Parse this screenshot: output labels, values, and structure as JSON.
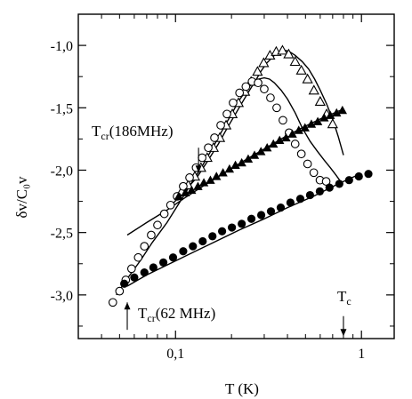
{
  "chart_data": {
    "type": "scatter",
    "xlabel": "T (K)",
    "ylabel": "δv/C₀v",
    "x_scale": "log",
    "xlim": [
      0.03,
      1.5
    ],
    "ylim": [
      -3.35,
      -0.75
    ],
    "x_ticks": [
      {
        "value": 0.1,
        "label": "0,1"
      },
      {
        "value": 1,
        "label": "1"
      }
    ],
    "y_ticks": [
      {
        "value": -1.0,
        "label": "-1,0"
      },
      {
        "value": -1.5,
        "label": "-1,5"
      },
      {
        "value": -2.0,
        "label": "-2,0"
      },
      {
        "value": -2.5,
        "label": "-2,5"
      },
      {
        "value": -3.0,
        "label": "-3,0"
      }
    ],
    "series": [
      {
        "marker": "open-triangle",
        "x": [
          0.108,
          0.117,
          0.127,
          0.137,
          0.148,
          0.16,
          0.173,
          0.187,
          0.202,
          0.218,
          0.236,
          0.255,
          0.276,
          0.298,
          0.322,
          0.348,
          0.376,
          0.406,
          0.44,
          0.475,
          0.513,
          0.555,
          0.6,
          0.65,
          0.7
        ],
        "y": [
          -2.17,
          -2.12,
          -2.05,
          -1.98,
          -1.9,
          -1.82,
          -1.74,
          -1.64,
          -1.55,
          -1.46,
          -1.37,
          -1.29,
          -1.21,
          -1.14,
          -1.08,
          -1.05,
          -1.04,
          -1.07,
          -1.13,
          -1.2,
          -1.27,
          -1.36,
          -1.45,
          -1.55,
          -1.63
        ]
      },
      {
        "marker": "open-circle",
        "x": [
          0.046,
          0.05,
          0.054,
          0.058,
          0.063,
          0.068,
          0.074,
          0.08,
          0.087,
          0.094,
          0.102,
          0.11,
          0.119,
          0.129,
          0.139,
          0.15,
          0.162,
          0.175,
          0.189,
          0.204,
          0.221,
          0.239,
          0.258,
          0.278,
          0.3,
          0.324,
          0.35,
          0.378,
          0.408,
          0.44,
          0.475,
          0.513,
          0.554,
          0.598,
          0.646
        ],
        "y": [
          -3.06,
          -2.97,
          -2.88,
          -2.79,
          -2.7,
          -2.61,
          -2.52,
          -2.44,
          -2.35,
          -2.28,
          -2.21,
          -2.13,
          -2.06,
          -1.98,
          -1.9,
          -1.82,
          -1.74,
          -1.64,
          -1.55,
          -1.46,
          -1.38,
          -1.33,
          -1.29,
          -1.3,
          -1.35,
          -1.42,
          -1.5,
          -1.6,
          -1.7,
          -1.79,
          -1.87,
          -1.95,
          -2.02,
          -2.08,
          -2.09
        ]
      },
      {
        "marker": "filled-triangle",
        "x": [
          0.104,
          0.113,
          0.122,
          0.132,
          0.142,
          0.154,
          0.166,
          0.18,
          0.195,
          0.21,
          0.227,
          0.246,
          0.266,
          0.288,
          0.311,
          0.336,
          0.363,
          0.393,
          0.425,
          0.46,
          0.497,
          0.538,
          0.582,
          0.63,
          0.68,
          0.735,
          0.79
        ],
        "y": [
          -2.21,
          -2.18,
          -2.16,
          -2.13,
          -2.1,
          -2.08,
          -2.05,
          -2.02,
          -1.99,
          -1.96,
          -1.94,
          -1.91,
          -1.88,
          -1.85,
          -1.82,
          -1.79,
          -1.76,
          -1.74,
          -1.71,
          -1.68,
          -1.66,
          -1.63,
          -1.61,
          -1.58,
          -1.56,
          -1.54,
          -1.52
        ]
      },
      {
        "marker": "filled-circle",
        "x": [
          0.053,
          0.06,
          0.068,
          0.076,
          0.086,
          0.097,
          0.11,
          0.124,
          0.14,
          0.158,
          0.178,
          0.201,
          0.227,
          0.256,
          0.289,
          0.326,
          0.368,
          0.415,
          0.469,
          0.529,
          0.597,
          0.673,
          0.76,
          0.858,
          0.968,
          1.09
        ],
        "y": [
          -2.91,
          -2.86,
          -2.82,
          -2.78,
          -2.74,
          -2.7,
          -2.65,
          -2.61,
          -2.57,
          -2.53,
          -2.49,
          -2.46,
          -2.43,
          -2.39,
          -2.36,
          -2.33,
          -2.3,
          -2.26,
          -2.23,
          -2.2,
          -2.17,
          -2.14,
          -2.11,
          -2.08,
          -2.05,
          -2.03
        ]
      }
    ],
    "fit_lines": [
      {
        "x": [
          0.095,
          0.11,
          0.13,
          0.15,
          0.17,
          0.19,
          0.21,
          0.23,
          0.25,
          0.27,
          0.29,
          0.31,
          0.33,
          0.35,
          0.37,
          0.39,
          0.41,
          0.44,
          0.48,
          0.52,
          0.56,
          0.6,
          0.65,
          0.7,
          0.75,
          0.8
        ],
        "y": [
          -2.28,
          -2.18,
          -2.06,
          -1.92,
          -1.79,
          -1.66,
          -1.55,
          -1.45,
          -1.36,
          -1.28,
          -1.2,
          -1.14,
          -1.1,
          -1.06,
          -1.04,
          -1.04,
          -1.05,
          -1.08,
          -1.13,
          -1.19,
          -1.27,
          -1.36,
          -1.47,
          -1.59,
          -1.73,
          -1.88
        ]
      },
      {
        "x": [
          0.048,
          0.055,
          0.065,
          0.075,
          0.09,
          0.105,
          0.12,
          0.14,
          0.16,
          0.18,
          0.2,
          0.22,
          0.24,
          0.26,
          0.28,
          0.3,
          0.32,
          0.34,
          0.37,
          0.4,
          0.44,
          0.48,
          0.53,
          0.58,
          0.63,
          0.68,
          0.73,
          0.78
        ],
        "y": [
          -3.0,
          -2.87,
          -2.72,
          -2.58,
          -2.42,
          -2.26,
          -2.12,
          -1.96,
          -1.81,
          -1.67,
          -1.55,
          -1.44,
          -1.36,
          -1.3,
          -1.27,
          -1.26,
          -1.27,
          -1.3,
          -1.36,
          -1.43,
          -1.54,
          -1.66,
          -1.77,
          -1.85,
          -1.92,
          -1.98,
          -2.04,
          -2.1
        ]
      },
      {
        "x": [
          0.055,
          0.07,
          0.09,
          0.11,
          0.14,
          0.18,
          0.23,
          0.3,
          0.38,
          0.48,
          0.6,
          0.8
        ],
        "y": [
          -2.52,
          -2.42,
          -2.32,
          -2.23,
          -2.13,
          -2.03,
          -1.93,
          -1.83,
          -1.74,
          -1.66,
          -1.59,
          -1.51
        ]
      },
      {
        "x": [
          0.055,
          0.07,
          0.09,
          0.12,
          0.16,
          0.22,
          0.3,
          0.4,
          0.55,
          0.75,
          0.95
        ],
        "y": [
          -2.93,
          -2.84,
          -2.76,
          -2.67,
          -2.58,
          -2.48,
          -2.39,
          -2.3,
          -2.21,
          -2.11,
          -2.04
        ]
      }
    ],
    "annotations": [
      {
        "text": "T",
        "sub": "cr",
        "rest": "(186MHz)",
        "arrow_x": 0.133,
        "arrow_y_from": -1.82,
        "arrow_y_to": -2.02
      },
      {
        "text": "T",
        "sub": "cr",
        "rest": "(62 MHz)",
        "arrow_x": 0.055,
        "arrow_y_from": -3.28,
        "arrow_y_to": -3.06
      },
      {
        "text": "T",
        "sub": "c",
        "rest": "",
        "arrow_x": 0.8,
        "arrow_y_from": -3.17,
        "arrow_y_to": -3.33
      }
    ]
  }
}
